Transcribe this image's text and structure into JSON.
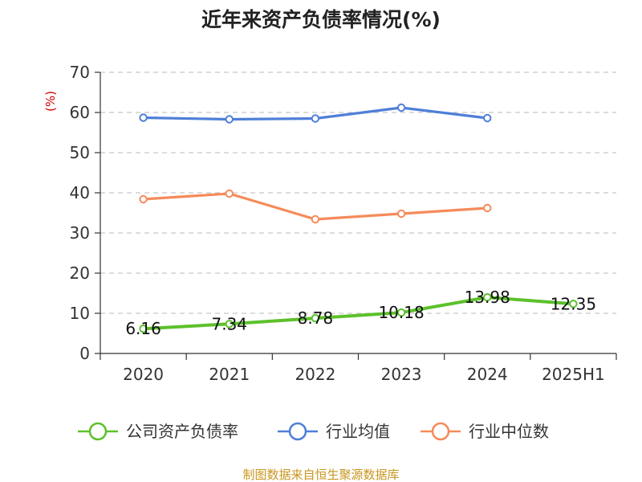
{
  "title": "近年来资产负债率情况(%)",
  "unit_label": "(%)",
  "source": "制图数据来自恒生聚源数据库",
  "colors": {
    "company": "#5cc12b",
    "industry_avg": "#4f7fd8",
    "industry_median": "#f58b5a",
    "grid": "#c8c8c8",
    "axis": "#333333"
  },
  "chart_data": {
    "type": "line",
    "title": "近年来资产负债率情况(%)",
    "ylabel": "(%)",
    "ylim": [
      0,
      70
    ],
    "yticks": [
      0,
      10,
      20,
      30,
      40,
      50,
      60,
      70
    ],
    "categories": [
      "2020",
      "2021",
      "2022",
      "2023",
      "2024",
      "2025H1"
    ],
    "grid": true,
    "legend_position": "bottom",
    "series": [
      {
        "name": "公司资产负债率",
        "values": [
          6.16,
          7.34,
          8.78,
          10.18,
          13.98,
          12.35
        ],
        "labels": [
          "6.16",
          "7.34",
          "8.78",
          "10.18",
          "13.98",
          "12.35"
        ]
      },
      {
        "name": "行业均值",
        "values": [
          58.7,
          58.3,
          58.5,
          61.2,
          58.6,
          null
        ]
      },
      {
        "name": "行业中位数",
        "values": [
          38.4,
          39.8,
          33.4,
          34.8,
          36.2,
          null
        ]
      }
    ]
  }
}
